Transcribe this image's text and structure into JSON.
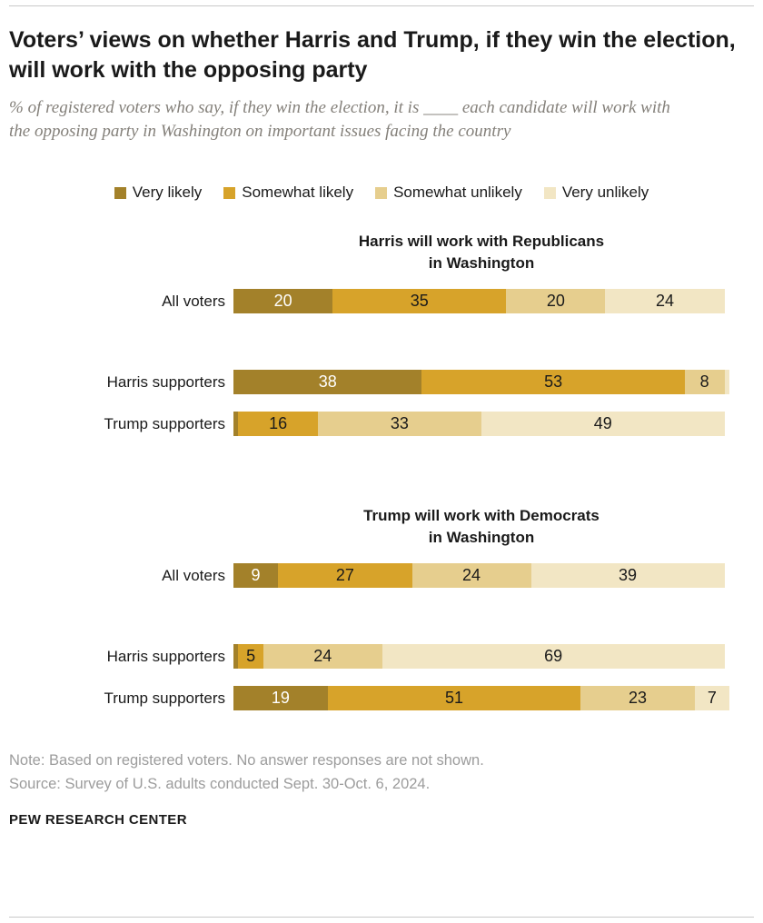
{
  "header": {
    "title": "Voters’ views on whether Harris and Trump, if they win the election, will work with the opposing party",
    "subtitle": "% of registered voters who say, if they win the election, it is ____  each candidate will work with the opposing party in Washington on important issues facing the country"
  },
  "colors": {
    "very_likely": "#A3812A",
    "somewhat_likely": "#D7A32A",
    "somewhat_unlikely": "#E6CE8E",
    "very_unlikely": "#F2E6C4"
  },
  "legend": [
    {
      "label": "Very likely",
      "color": "#A3812A"
    },
    {
      "label": "Somewhat likely",
      "color": "#D7A32A"
    },
    {
      "label": "Somewhat unlikely",
      "color": "#E6CE8E"
    },
    {
      "label": "Very unlikely",
      "color": "#F2E6C4"
    }
  ],
  "chart_data": [
    {
      "type": "bar",
      "stacked": true,
      "orientation": "horizontal",
      "title": "Harris will work with Republicans in Washington",
      "title_lines": [
        "Harris will work with Republicans",
        "in Washington"
      ],
      "xlim": [
        0,
        100
      ],
      "categories": [
        "All voters",
        "Harris supporters",
        "Trump supporters"
      ],
      "series": [
        {
          "name": "Very likely",
          "values": [
            20,
            38,
            1
          ]
        },
        {
          "name": "Somewhat likely",
          "values": [
            35,
            53,
            16
          ]
        },
        {
          "name": "Somewhat unlikely",
          "values": [
            20,
            8,
            33
          ]
        },
        {
          "name": "Very unlikely",
          "values": [
            24,
            1,
            49
          ]
        }
      ]
    },
    {
      "type": "bar",
      "stacked": true,
      "orientation": "horizontal",
      "title": "Trump will work with Democrats in Washington",
      "title_lines": [
        "Trump will work with Democrats",
        "in Washington"
      ],
      "xlim": [
        0,
        100
      ],
      "categories": [
        "All voters",
        "Harris supporters",
        "Trump supporters"
      ],
      "series": [
        {
          "name": "Very likely",
          "values": [
            9,
            1,
            19
          ]
        },
        {
          "name": "Somewhat likely",
          "values": [
            27,
            5,
            51
          ]
        },
        {
          "name": "Somewhat unlikely",
          "values": [
            24,
            24,
            23
          ]
        },
        {
          "name": "Very unlikely",
          "values": [
            39,
            69,
            7
          ]
        }
      ]
    }
  ],
  "label_min_value": 4,
  "footer": {
    "note": "Note: Based on registered voters. No answer responses are not shown.",
    "source": "Source: Survey of U.S. adults conducted Sept. 30-Oct. 6, 2024.",
    "brand": "PEW RESEARCH CENTER"
  }
}
